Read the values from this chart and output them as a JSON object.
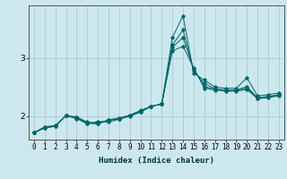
{
  "xlabel": "Humidex (Indice chaleur)",
  "bg_color": "#cce8ee",
  "grid_color": "#aacccc",
  "line_color": "#006666",
  "x_data": [
    0,
    1,
    2,
    3,
    4,
    5,
    6,
    7,
    8,
    9,
    10,
    11,
    12,
    13,
    14,
    15,
    16,
    17,
    18,
    19,
    20,
    21,
    22,
    23
  ],
  "series": [
    [
      1.72,
      1.82,
      1.84,
      2.01,
      1.96,
      1.87,
      1.91,
      1.9,
      1.95,
      2.0,
      2.07,
      2.17,
      2.21,
      3.35,
      3.72,
      2.74,
      2.62,
      2.5,
      2.48,
      2.48,
      2.66,
      2.35,
      2.37,
      2.4
    ],
    [
      1.72,
      1.8,
      1.83,
      2.01,
      1.98,
      1.88,
      1.87,
      1.93,
      1.96,
      2.01,
      2.09,
      2.17,
      2.21,
      3.22,
      3.48,
      2.78,
      2.56,
      2.47,
      2.45,
      2.45,
      2.51,
      2.32,
      2.34,
      2.37
    ],
    [
      1.72,
      1.8,
      1.83,
      2.01,
      1.99,
      1.9,
      1.87,
      1.94,
      1.97,
      2.02,
      2.1,
      2.17,
      2.21,
      3.18,
      3.35,
      2.81,
      2.51,
      2.46,
      2.44,
      2.44,
      2.48,
      2.31,
      2.33,
      2.36
    ],
    [
      1.72,
      1.81,
      1.84,
      2.01,
      1.97,
      1.89,
      1.89,
      1.93,
      1.96,
      2.01,
      2.08,
      2.17,
      2.21,
      3.12,
      3.2,
      2.83,
      2.48,
      2.45,
      2.43,
      2.43,
      2.46,
      2.3,
      2.32,
      2.35
    ]
  ],
  "ylim": [
    1.6,
    3.9
  ],
  "yticks": [
    2,
    3
  ],
  "xlim": [
    -0.5,
    23.5
  ],
  "tick_fontsize": 5.5,
  "xlabel_fontsize": 6.5
}
